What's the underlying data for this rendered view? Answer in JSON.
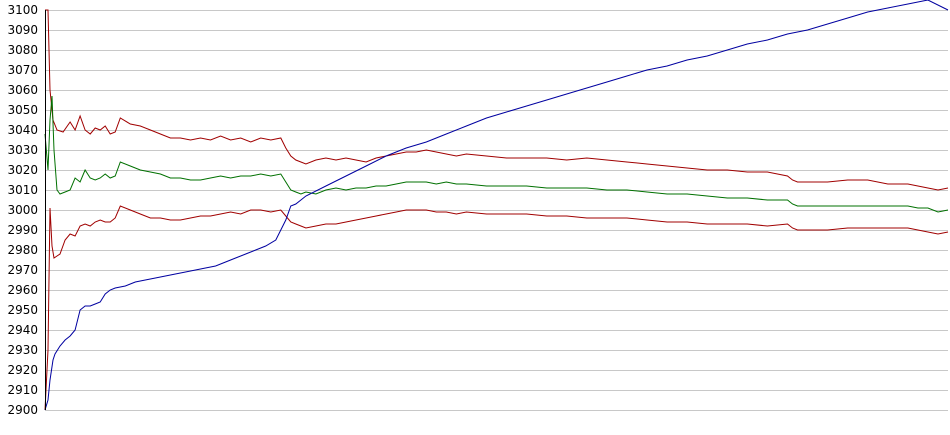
{
  "chart_data": {
    "type": "line",
    "title": "",
    "xlabel": "",
    "ylabel": "",
    "xlim": [
      0,
      900
    ],
    "ylim": [
      2900,
      3100
    ],
    "y_ticks": [
      2900,
      2910,
      2920,
      2930,
      2940,
      2950,
      2960,
      2970,
      2980,
      2990,
      3000,
      3010,
      3020,
      3030,
      3040,
      3050,
      3060,
      3070,
      3080,
      3090,
      3100
    ],
    "grid": "horizontal",
    "legend": "none",
    "colors": {
      "background": "#ffffff",
      "grid": "#c8c8c8",
      "upper_band": "#a00000",
      "middle": "#007000",
      "lower_band": "#a00000",
      "trend": "#0000a0"
    },
    "series": [
      {
        "color": "#a00000",
        "x": [
          0,
          3,
          5,
          8,
          12,
          18,
          25,
          30,
          35,
          40,
          45,
          50,
          55,
          60,
          65,
          70,
          75,
          85,
          95,
          105,
          115,
          125,
          135,
          145,
          155,
          165,
          175,
          185,
          195,
          205,
          215,
          225,
          235,
          240,
          245,
          250,
          255,
          260,
          270,
          280,
          290,
          300,
          310,
          320,
          330,
          340,
          350,
          360,
          370,
          380,
          390,
          400,
          410,
          420,
          440,
          460,
          480,
          500,
          520,
          540,
          560,
          580,
          600,
          620,
          640,
          660,
          680,
          700,
          720,
          740,
          745,
          750,
          760,
          780,
          800,
          820,
          840,
          860,
          870,
          880,
          890,
          900
        ],
        "y": [
          3100,
          3100,
          3060,
          3045,
          3040,
          3039,
          3044,
          3040,
          3047,
          3040,
          3038,
          3041,
          3040,
          3042,
          3038,
          3039,
          3046,
          3043,
          3042,
          3040,
          3038,
          3036,
          3036,
          3035,
          3036,
          3035,
          3037,
          3035,
          3036,
          3034,
          3036,
          3035,
          3036,
          3031,
          3027,
          3025,
          3024,
          3023,
          3025,
          3026,
          3025,
          3026,
          3025,
          3024,
          3026,
          3027,
          3028,
          3029,
          3029,
          3030,
          3029,
          3028,
          3027,
          3028,
          3027,
          3026,
          3026,
          3026,
          3025,
          3026,
          3025,
          3024,
          3023,
          3022,
          3021,
          3020,
          3020,
          3019,
          3019,
          3017,
          3015,
          3014,
          3014,
          3014,
          3015,
          3015,
          3013,
          3013,
          3012,
          3011,
          3010,
          3011
        ]
      },
      {
        "color": "#007000",
        "x": [
          0,
          3,
          5,
          7,
          9,
          12,
          15,
          20,
          25,
          30,
          35,
          40,
          45,
          50,
          55,
          60,
          65,
          70,
          75,
          85,
          95,
          105,
          115,
          125,
          135,
          145,
          155,
          165,
          175,
          185,
          195,
          205,
          215,
          225,
          235,
          240,
          245,
          250,
          255,
          260,
          270,
          280,
          290,
          300,
          310,
          320,
          330,
          340,
          350,
          360,
          370,
          380,
          390,
          400,
          410,
          420,
          440,
          460,
          480,
          500,
          520,
          540,
          560,
          580,
          600,
          620,
          640,
          660,
          680,
          700,
          720,
          740,
          745,
          750,
          760,
          780,
          800,
          820,
          840,
          860,
          870,
          880,
          890,
          900
        ],
        "y": [
          3038,
          3020,
          3045,
          3057,
          3030,
          3010,
          3008,
          3009,
          3010,
          3016,
          3014,
          3020,
          3016,
          3015,
          3016,
          3018,
          3016,
          3017,
          3024,
          3022,
          3020,
          3019,
          3018,
          3016,
          3016,
          3015,
          3015,
          3016,
          3017,
          3016,
          3017,
          3017,
          3018,
          3017,
          3018,
          3014,
          3010,
          3009,
          3008,
          3009,
          3008,
          3010,
          3011,
          3010,
          3011,
          3011,
          3012,
          3012,
          3013,
          3014,
          3014,
          3014,
          3013,
          3014,
          3013,
          3013,
          3012,
          3012,
          3012,
          3011,
          3011,
          3011,
          3010,
          3010,
          3009,
          3008,
          3008,
          3007,
          3006,
          3006,
          3005,
          3005,
          3003,
          3002,
          3002,
          3002,
          3002,
          3002,
          3002,
          3002,
          3001,
          3001,
          2999,
          3000
        ]
      },
      {
        "color": "#a00000",
        "x": [
          0,
          3,
          5,
          7,
          9,
          12,
          15,
          20,
          25,
          30,
          35,
          40,
          45,
          50,
          55,
          60,
          65,
          70,
          75,
          85,
          95,
          105,
          115,
          125,
          135,
          145,
          155,
          165,
          175,
          185,
          195,
          205,
          215,
          225,
          235,
          240,
          245,
          250,
          255,
          260,
          270,
          280,
          290,
          300,
          310,
          320,
          330,
          340,
          350,
          360,
          370,
          380,
          390,
          400,
          410,
          420,
          440,
          460,
          480,
          500,
          520,
          540,
          560,
          580,
          600,
          620,
          640,
          660,
          680,
          700,
          720,
          740,
          745,
          750,
          760,
          780,
          800,
          820,
          840,
          860,
          870,
          880,
          890,
          900
        ],
        "y": [
          2900,
          2930,
          3001,
          2982,
          2976,
          2977,
          2978,
          2985,
          2988,
          2987,
          2992,
          2993,
          2992,
          2994,
          2995,
          2994,
          2994,
          2996,
          3002,
          3000,
          2998,
          2996,
          2996,
          2995,
          2995,
          2996,
          2997,
          2997,
          2998,
          2999,
          2998,
          3000,
          3000,
          2999,
          3000,
          2997,
          2994,
          2993,
          2992,
          2991,
          2992,
          2993,
          2993,
          2994,
          2995,
          2996,
          2997,
          2998,
          2999,
          3000,
          3000,
          3000,
          2999,
          2999,
          2998,
          2999,
          2998,
          2998,
          2998,
          2997,
          2997,
          2996,
          2996,
          2996,
          2995,
          2994,
          2994,
          2993,
          2993,
          2993,
          2992,
          2993,
          2991,
          2990,
          2990,
          2990,
          2991,
          2991,
          2991,
          2991,
          2990,
          2989,
          2988,
          2989
        ]
      },
      {
        "color": "#0000a0",
        "x": [
          0,
          3,
          5,
          8,
          10,
          15,
          20,
          25,
          30,
          35,
          40,
          45,
          50,
          55,
          60,
          65,
          70,
          80,
          90,
          100,
          110,
          120,
          130,
          140,
          150,
          160,
          170,
          180,
          190,
          200,
          210,
          220,
          230,
          240,
          245,
          250,
          255,
          260,
          280,
          300,
          320,
          340,
          360,
          380,
          400,
          420,
          440,
          460,
          480,
          500,
          520,
          540,
          560,
          580,
          600,
          620,
          640,
          660,
          680,
          700,
          720,
          740,
          760,
          780,
          800,
          820,
          840,
          860,
          880,
          900
        ],
        "y": [
          2900,
          2905,
          2915,
          2925,
          2928,
          2932,
          2935,
          2937,
          2940,
          2950,
          2952,
          2952,
          2953,
          2954,
          2958,
          2960,
          2961,
          2962,
          2964,
          2965,
          2966,
          2967,
          2968,
          2969,
          2970,
          2971,
          2972,
          2974,
          2976,
          2978,
          2980,
          2982,
          2985,
          2995,
          3002,
          3003,
          3005,
          3007,
          3012,
          3017,
          3022,
          3027,
          3031,
          3034,
          3038,
          3042,
          3046,
          3049,
          3052,
          3055,
          3058,
          3061,
          3064,
          3067,
          3070,
          3072,
          3075,
          3077,
          3080,
          3083,
          3085,
          3088,
          3090,
          3093,
          3096,
          3099,
          3101,
          3103,
          3105,
          3100
        ]
      }
    ]
  }
}
